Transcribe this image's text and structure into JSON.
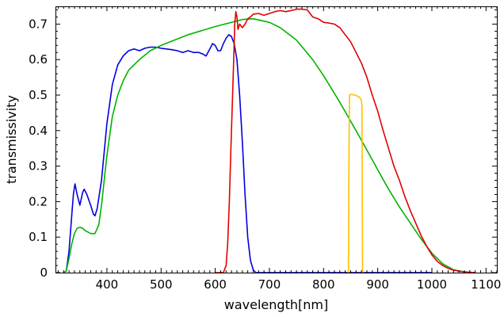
{
  "chart_data": {
    "type": "line",
    "title": "",
    "xlabel": "wavelength[nm]",
    "ylabel": "transmissivity",
    "xlim": [
      305,
      1120
    ],
    "ylim": [
      0,
      0.75
    ],
    "grid": false,
    "legend": "none",
    "x_ticks": [
      400,
      500,
      600,
      700,
      800,
      900,
      1000,
      1100
    ],
    "x_tick_labels": [
      "400",
      "500",
      "600",
      "700",
      "800",
      "900",
      "1000",
      "1100"
    ],
    "y_ticks": [
      0,
      0.1,
      0.2,
      0.3,
      0.4,
      0.5,
      0.6,
      0.7
    ],
    "y_tick_labels": [
      "0",
      "0.1",
      "0.2",
      "0.3",
      "0.4",
      "0.5",
      "0.6",
      "0.7"
    ],
    "series": [
      {
        "color": "#0000e0",
        "points": [
          [
            320,
            0
          ],
          [
            325,
            0.005
          ],
          [
            330,
            0.06
          ],
          [
            335,
            0.16
          ],
          [
            338,
            0.22
          ],
          [
            341,
            0.25
          ],
          [
            345,
            0.22
          ],
          [
            350,
            0.19
          ],
          [
            355,
            0.225
          ],
          [
            358,
            0.235
          ],
          [
            363,
            0.22
          ],
          [
            370,
            0.19
          ],
          [
            375,
            0.165
          ],
          [
            378,
            0.16
          ],
          [
            382,
            0.18
          ],
          [
            390,
            0.26
          ],
          [
            400,
            0.42
          ],
          [
            410,
            0.53
          ],
          [
            420,
            0.585
          ],
          [
            430,
            0.61
          ],
          [
            440,
            0.625
          ],
          [
            450,
            0.63
          ],
          [
            460,
            0.625
          ],
          [
            470,
            0.632
          ],
          [
            480,
            0.635
          ],
          [
            490,
            0.635
          ],
          [
            500,
            0.632
          ],
          [
            510,
            0.63
          ],
          [
            520,
            0.628
          ],
          [
            530,
            0.625
          ],
          [
            540,
            0.62
          ],
          [
            550,
            0.625
          ],
          [
            560,
            0.62
          ],
          [
            570,
            0.62
          ],
          [
            578,
            0.615
          ],
          [
            583,
            0.61
          ],
          [
            590,
            0.63
          ],
          [
            595,
            0.645
          ],
          [
            600,
            0.64
          ],
          [
            605,
            0.625
          ],
          [
            610,
            0.625
          ],
          [
            615,
            0.645
          ],
          [
            620,
            0.66
          ],
          [
            625,
            0.67
          ],
          [
            630,
            0.665
          ],
          [
            635,
            0.645
          ],
          [
            640,
            0.6
          ],
          [
            645,
            0.5
          ],
          [
            650,
            0.37
          ],
          [
            655,
            0.22
          ],
          [
            660,
            0.1
          ],
          [
            665,
            0.035
          ],
          [
            670,
            0.008
          ],
          [
            675,
            0
          ],
          [
            1000,
            0
          ]
        ]
      },
      {
        "color": "#00b400",
        "points": [
          [
            320,
            0
          ],
          [
            325,
            0.005
          ],
          [
            330,
            0.04
          ],
          [
            335,
            0.08
          ],
          [
            340,
            0.11
          ],
          [
            345,
            0.125
          ],
          [
            350,
            0.128
          ],
          [
            355,
            0.125
          ],
          [
            360,
            0.118
          ],
          [
            370,
            0.11
          ],
          [
            378,
            0.11
          ],
          [
            385,
            0.135
          ],
          [
            390,
            0.19
          ],
          [
            395,
            0.26
          ],
          [
            400,
            0.33
          ],
          [
            410,
            0.44
          ],
          [
            420,
            0.5
          ],
          [
            430,
            0.54
          ],
          [
            440,
            0.57
          ],
          [
            460,
            0.6
          ],
          [
            480,
            0.625
          ],
          [
            500,
            0.64
          ],
          [
            550,
            0.67
          ],
          [
            600,
            0.693
          ],
          [
            650,
            0.713
          ],
          [
            670,
            0.715
          ],
          [
            700,
            0.705
          ],
          [
            720,
            0.69
          ],
          [
            750,
            0.655
          ],
          [
            780,
            0.6
          ],
          [
            800,
            0.555
          ],
          [
            830,
            0.48
          ],
          [
            860,
            0.4
          ],
          [
            880,
            0.345
          ],
          [
            900,
            0.29
          ],
          [
            920,
            0.235
          ],
          [
            940,
            0.185
          ],
          [
            960,
            0.14
          ],
          [
            980,
            0.095
          ],
          [
            1000,
            0.055
          ],
          [
            1020,
            0.025
          ],
          [
            1040,
            0.008
          ],
          [
            1060,
            0.002
          ],
          [
            1080,
            0
          ]
        ]
      },
      {
        "color": "#e00000",
        "points": [
          [
            600,
            0
          ],
          [
            615,
            0
          ],
          [
            620,
            0.02
          ],
          [
            623,
            0.08
          ],
          [
            626,
            0.2
          ],
          [
            629,
            0.35
          ],
          [
            632,
            0.5
          ],
          [
            634,
            0.6
          ],
          [
            636,
            0.7
          ],
          [
            638,
            0.735
          ],
          [
            640,
            0.72
          ],
          [
            642,
            0.685
          ],
          [
            645,
            0.7
          ],
          [
            650,
            0.69
          ],
          [
            655,
            0.7
          ],
          [
            660,
            0.715
          ],
          [
            665,
            0.72
          ],
          [
            670,
            0.728
          ],
          [
            680,
            0.73
          ],
          [
            690,
            0.725
          ],
          [
            700,
            0.73
          ],
          [
            710,
            0.735
          ],
          [
            720,
            0.738
          ],
          [
            730,
            0.735
          ],
          [
            740,
            0.738
          ],
          [
            750,
            0.742
          ],
          [
            760,
            0.742
          ],
          [
            770,
            0.74
          ],
          [
            775,
            0.73
          ],
          [
            780,
            0.72
          ],
          [
            790,
            0.715
          ],
          [
            800,
            0.705
          ],
          [
            810,
            0.703
          ],
          [
            820,
            0.7
          ],
          [
            830,
            0.69
          ],
          [
            840,
            0.67
          ],
          [
            850,
            0.65
          ],
          [
            860,
            0.62
          ],
          [
            870,
            0.59
          ],
          [
            880,
            0.55
          ],
          [
            890,
            0.5
          ],
          [
            900,
            0.455
          ],
          [
            910,
            0.4
          ],
          [
            920,
            0.35
          ],
          [
            930,
            0.3
          ],
          [
            940,
            0.26
          ],
          [
            950,
            0.215
          ],
          [
            960,
            0.175
          ],
          [
            970,
            0.14
          ],
          [
            980,
            0.105
          ],
          [
            990,
            0.075
          ],
          [
            1000,
            0.05
          ],
          [
            1010,
            0.032
          ],
          [
            1020,
            0.02
          ],
          [
            1030,
            0.012
          ],
          [
            1040,
            0.007
          ],
          [
            1050,
            0.004
          ],
          [
            1060,
            0.002
          ],
          [
            1070,
            0.001
          ],
          [
            1080,
            0
          ]
        ]
      },
      {
        "color": "#ffc000",
        "points": [
          [
            845,
            0
          ],
          [
            846,
            0
          ],
          [
            847,
            0.35
          ],
          [
            848,
            0.5
          ],
          [
            852,
            0.502
          ],
          [
            856,
            0.5
          ],
          [
            860,
            0.5
          ],
          [
            864,
            0.495
          ],
          [
            866,
            0.495
          ],
          [
            868,
            0.49
          ],
          [
            870,
            0.485
          ],
          [
            871,
            0.47
          ],
          [
            872,
            0.0
          ],
          [
            873,
            0
          ]
        ]
      }
    ]
  }
}
